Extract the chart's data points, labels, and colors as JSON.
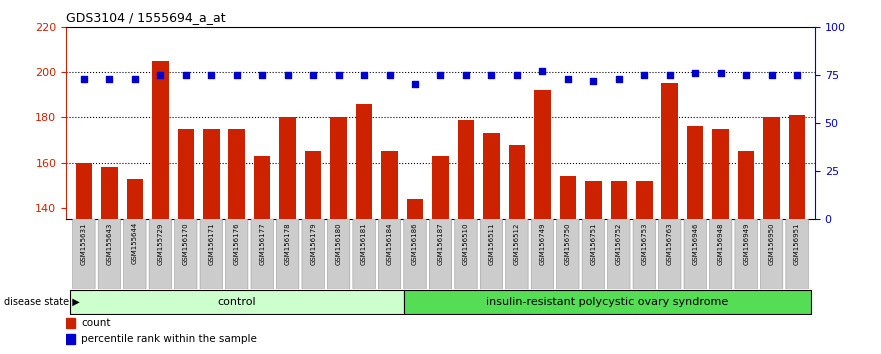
{
  "title": "GDS3104 / 1555694_a_at",
  "samples": [
    "GSM155631",
    "GSM155643",
    "GSM155644",
    "GSM155729",
    "GSM156170",
    "GSM156171",
    "GSM156176",
    "GSM156177",
    "GSM156178",
    "GSM156179",
    "GSM156180",
    "GSM156181",
    "GSM156184",
    "GSM156186",
    "GSM156187",
    "GSM156510",
    "GSM156511",
    "GSM156512",
    "GSM156749",
    "GSM156750",
    "GSM156751",
    "GSM156752",
    "GSM156753",
    "GSM156763",
    "GSM156946",
    "GSM156948",
    "GSM156949",
    "GSM156950",
    "GSM156951"
  ],
  "bar_values": [
    160,
    158,
    153,
    205,
    175,
    175,
    175,
    163,
    180,
    165,
    180,
    186,
    165,
    144,
    163,
    179,
    173,
    168,
    192,
    154,
    152,
    152,
    152,
    195,
    176,
    175,
    165,
    180,
    181
  ],
  "percentile_values": [
    73,
    73,
    73,
    75,
    75,
    75,
    75,
    75,
    75,
    75,
    75,
    75,
    75,
    70,
    75,
    75,
    75,
    75,
    77,
    73,
    72,
    73,
    75,
    75,
    76,
    76,
    75,
    75,
    75
  ],
  "group_labels": [
    "control",
    "insulin-resistant polycystic ovary syndrome"
  ],
  "group_sizes": [
    13,
    16
  ],
  "ylim_left": [
    135,
    220
  ],
  "ylim_right": [
    0,
    100
  ],
  "yticks_left": [
    140,
    160,
    180,
    200,
    220
  ],
  "yticks_right": [
    0,
    25,
    50,
    75,
    100
  ],
  "bar_color": "#CC2200",
  "dot_color": "#0000CC",
  "control_bg": "#CCFFCC",
  "pcos_bg": "#55DD55",
  "xticklabel_bg": "#CCCCCC",
  "legend_bar_label": "count",
  "legend_dot_label": "percentile rank within the sample",
  "ylabel_left_color": "#CC2200",
  "ylabel_right_color": "#0000CC",
  "dotted_line_values": [
    160,
    180,
    200
  ]
}
